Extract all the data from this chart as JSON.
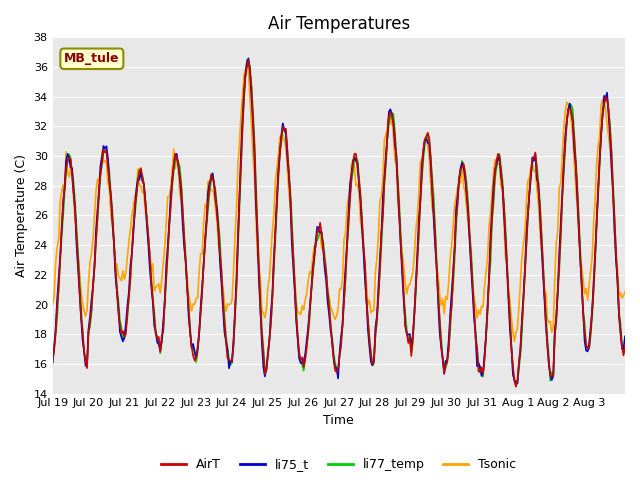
{
  "title": "Air Temperatures",
  "ylabel": "Air Temperature (C)",
  "xlabel": "Time",
  "ylim": [
    14,
    38
  ],
  "yticks": [
    14,
    16,
    18,
    20,
    22,
    24,
    26,
    28,
    30,
    32,
    34,
    36,
    38
  ],
  "xtick_labels": [
    "Jul 19",
    "Jul 20",
    "Jul 21",
    "Jul 22",
    "Jul 23",
    "Jul 24",
    "Jul 25",
    "Jul 26",
    "Jul 27",
    "Jul 28",
    "Jul 29",
    "Jul 30",
    "Jul 31",
    "Aug 1",
    "Aug 2",
    "Aug 3"
  ],
  "colors": {
    "AirT": "#cc0000",
    "li75_t": "#0000cc",
    "li77_temp": "#00cc00",
    "Tsonic": "#ffa500"
  },
  "legend_label": "MB_tule",
  "bg_color": "#e8e8e8",
  "fig_bg": "#ffffff",
  "linewidth": 1.2,
  "day_peaks": [
    30,
    30.5,
    29,
    30,
    28.5,
    36.5,
    32,
    25,
    30,
    33,
    31.5,
    29.5,
    30,
    30,
    33.5,
    34
  ],
  "day_mins": [
    16,
    18,
    17.5,
    16.5,
    16,
    15.5,
    16,
    15.5,
    16,
    17.5,
    16,
    15.5,
    14.5,
    15,
    17,
    17
  ]
}
